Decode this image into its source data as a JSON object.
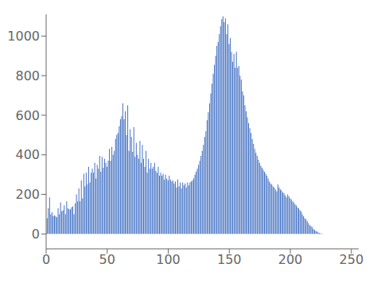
{
  "chart_data": {
    "type": "bar",
    "color": "#4472c4",
    "grid": false,
    "xlim": [
      0,
      256
    ],
    "ylim": [
      -75,
      1110
    ],
    "xticks": [
      0,
      50,
      100,
      150,
      200,
      250
    ],
    "yticks": [
      0,
      200,
      400,
      600,
      800,
      1000
    ],
    "x": [
      0,
      1,
      2,
      3,
      4,
      5,
      6,
      7,
      8,
      9,
      10,
      11,
      12,
      13,
      14,
      15,
      16,
      17,
      18,
      19,
      20,
      21,
      22,
      23,
      24,
      25,
      26,
      27,
      28,
      29,
      30,
      31,
      32,
      33,
      34,
      35,
      36,
      37,
      38,
      39,
      40,
      41,
      42,
      43,
      44,
      45,
      46,
      47,
      48,
      49,
      50,
      51,
      52,
      53,
      54,
      55,
      56,
      57,
      58,
      59,
      60,
      61,
      62,
      63,
      64,
      65,
      66,
      67,
      68,
      69,
      70,
      71,
      72,
      73,
      74,
      75,
      76,
      77,
      78,
      79,
      80,
      81,
      82,
      83,
      84,
      85,
      86,
      87,
      88,
      89,
      90,
      91,
      92,
      93,
      94,
      95,
      96,
      97,
      98,
      99,
      100,
      101,
      102,
      103,
      104,
      105,
      106,
      107,
      108,
      109,
      110,
      111,
      112,
      113,
      114,
      115,
      116,
      117,
      118,
      119,
      120,
      121,
      122,
      123,
      124,
      125,
      126,
      127,
      128,
      129,
      130,
      131,
      132,
      133,
      134,
      135,
      136,
      137,
      138,
      139,
      140,
      141,
      142,
      143,
      144,
      145,
      146,
      147,
      148,
      149,
      150,
      151,
      152,
      153,
      154,
      155,
      156,
      157,
      158,
      159,
      160,
      161,
      162,
      163,
      164,
      165,
      166,
      167,
      168,
      169,
      170,
      171,
      172,
      173,
      174,
      175,
      176,
      177,
      178,
      179,
      180,
      181,
      182,
      183,
      184,
      185,
      186,
      187,
      188,
      189,
      190,
      191,
      192,
      193,
      194,
      195,
      196,
      197,
      198,
      199,
      200,
      201,
      202,
      203,
      204,
      205,
      206,
      207,
      208,
      209,
      210,
      211,
      212,
      213,
      214,
      215,
      216,
      217,
      218,
      219,
      220,
      221,
      222,
      223,
      224,
      225,
      226,
      227,
      228,
      229,
      230,
      231,
      232,
      233,
      234,
      235,
      236,
      237,
      238,
      239,
      240,
      241,
      242,
      243,
      244,
      245,
      246,
      247,
      248,
      249,
      250,
      251,
      252,
      253,
      254,
      255
    ],
    "values": [
      5,
      80,
      130,
      185,
      100,
      110,
      90,
      95,
      90,
      85,
      130,
      100,
      160,
      115,
      120,
      145,
      100,
      165,
      130,
      125,
      125,
      135,
      140,
      100,
      155,
      200,
      165,
      230,
      165,
      270,
      180,
      305,
      240,
      310,
      250,
      340,
      260,
      310,
      330,
      310,
      360,
      280,
      350,
      330,
      395,
      315,
      390,
      335,
      380,
      360,
      340,
      370,
      430,
      370,
      440,
      400,
      420,
      480,
      500,
      510,
      545,
      580,
      595,
      660,
      580,
      620,
      500,
      650,
      420,
      530,
      490,
      415,
      540,
      390,
      460,
      400,
      380,
      470,
      360,
      450,
      380,
      340,
      420,
      310,
      380,
      330,
      360,
      330,
      340,
      360,
      320,
      310,
      340,
      295,
      310,
      295,
      305,
      275,
      300,
      280,
      270,
      295,
      275,
      265,
      270,
      255,
      265,
      235,
      275,
      240,
      260,
      230,
      260,
      245,
      255,
      235,
      260,
      245,
      260,
      265,
      270,
      280,
      300,
      315,
      330,
      350,
      370,
      395,
      420,
      450,
      490,
      520,
      575,
      615,
      660,
      710,
      760,
      810,
      855,
      900,
      950,
      970,
      1010,
      1050,
      1085,
      1100,
      1070,
      1090,
      1010,
      1060,
      960,
      990,
      920,
      870,
      910,
      840,
      920,
      840,
      850,
      800,
      780,
      720,
      700,
      650,
      620,
      590,
      560,
      535,
      510,
      480,
      455,
      430,
      410,
      395,
      375,
      360,
      345,
      335,
      325,
      315,
      305,
      295,
      280,
      265,
      255,
      250,
      240,
      235,
      225,
      215,
      250,
      235,
      225,
      220,
      210,
      205,
      195,
      185,
      200,
      190,
      180,
      175,
      165,
      160,
      150,
      145,
      135,
      130,
      120,
      115,
      100,
      90,
      80,
      75,
      65,
      55,
      45,
      40,
      35,
      25,
      20,
      15,
      12,
      8,
      5,
      3,
      2,
      1,
      0,
      0,
      0,
      0,
      0,
      0,
      0,
      0,
      0,
      0,
      0,
      0,
      0,
      0,
      0,
      0,
      0,
      0,
      0,
      0,
      0,
      0,
      0,
      0,
      0,
      0,
      0,
      0
    ]
  }
}
